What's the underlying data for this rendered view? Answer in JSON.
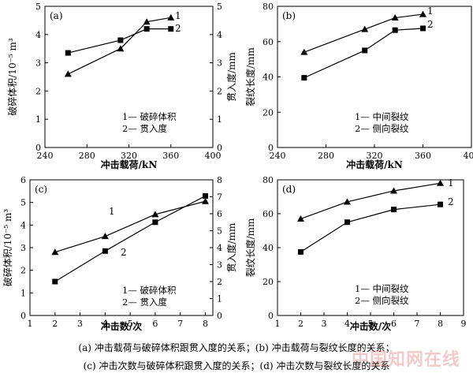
{
  "chart_data": [
    {
      "type": "line",
      "panel": "(a)",
      "xlabel": "冲击载荷/kN",
      "ylabel_left": "破碎体积/10⁻⁵ m³",
      "ylabel_right": "贯入度/mm",
      "xlim": [
        240,
        400
      ],
      "xticks": [
        240,
        280,
        320,
        360,
        400
      ],
      "ylim_left": [
        0,
        5
      ],
      "yticks_left": [
        0,
        1,
        2,
        3,
        4,
        5
      ],
      "ylim_right": [
        0,
        5
      ],
      "yticks_right": [
        0,
        1,
        2,
        3,
        4,
        5
      ],
      "series": [
        {
          "name": "破碎体积",
          "legend_label": "1— 破碎体积",
          "axis": "left",
          "marker": "triangle",
          "curve_label": "1",
          "x": [
            262,
            312,
            337,
            360
          ],
          "y": [
            2.6,
            3.5,
            4.45,
            4.6
          ]
        },
        {
          "name": "贯入度",
          "legend_label": "2— 贯入度",
          "axis": "right",
          "marker": "square",
          "curve_label": "2",
          "x": [
            262,
            312,
            337,
            360
          ],
          "y": [
            3.35,
            3.8,
            4.2,
            4.2
          ]
        }
      ]
    },
    {
      "type": "line",
      "panel": "(b)",
      "xlabel": "冲击载荷/kN",
      "ylabel_left": "裂纹长度/mm",
      "xlim": [
        240,
        400
      ],
      "xticks": [
        240,
        280,
        320,
        360,
        400
      ],
      "ylim_left": [
        0,
        80
      ],
      "yticks_left": [
        0,
        20,
        40,
        60,
        80
      ],
      "series": [
        {
          "name": "中间裂纹",
          "legend_label": "1— 中间裂纹",
          "axis": "left",
          "marker": "triangle",
          "curve_label": "1",
          "x": [
            262,
            312,
            337,
            360
          ],
          "y": [
            54,
            67,
            73.5,
            75.5
          ]
        },
        {
          "name": "侧向裂纹",
          "legend_label": "2— 侧向裂纹",
          "axis": "left",
          "marker": "square",
          "curve_label": "2",
          "x": [
            262,
            312,
            337,
            360
          ],
          "y": [
            39.5,
            55,
            66.5,
            67.5
          ]
        }
      ]
    },
    {
      "type": "line",
      "panel": "(c)",
      "xlabel": "冲击数/次",
      "ylabel_left": "破碎体积/10⁻⁵ m³",
      "ylabel_right": "贯入度/mm",
      "xlim": [
        1,
        8.3
      ],
      "xticks": [
        1,
        2,
        3,
        4,
        5,
        6,
        7,
        8
      ],
      "ylim_left": [
        0,
        6
      ],
      "yticks_left": [
        0,
        1,
        2,
        3,
        4,
        5,
        6
      ],
      "ylim_right": [
        0,
        8
      ],
      "yticks_right": [
        0,
        1,
        2,
        3,
        4,
        5,
        6,
        7,
        8
      ],
      "series": [
        {
          "name": "破碎体积",
          "legend_label": "1— 破碎体积",
          "axis": "left",
          "marker": "triangle",
          "curve_label": "1",
          "x": [
            2,
            4,
            6,
            8
          ],
          "y": [
            2.8,
            3.5,
            4.47,
            5.05
          ]
        },
        {
          "name": "贯入度",
          "legend_label": "2— 贯入度",
          "axis": "right",
          "marker": "square",
          "curve_label": "2",
          "x": [
            2,
            4,
            6,
            8
          ],
          "y": [
            2.0,
            3.8,
            5.5,
            7.05
          ]
        }
      ]
    },
    {
      "type": "line",
      "panel": "(d)",
      "xlabel": "冲击数/次",
      "ylabel_left": "裂纹长度/mm",
      "xlim": [
        1,
        9
      ],
      "xticks": [
        1,
        2,
        3,
        4,
        5,
        6,
        7,
        8,
        9
      ],
      "ylim_left": [
        0,
        80
      ],
      "yticks_left": [
        0,
        20,
        40,
        60,
        80
      ],
      "series": [
        {
          "name": "中间裂纹",
          "legend_label": "1— 中间裂纹",
          "axis": "left",
          "marker": "triangle",
          "curve_label": "1",
          "x": [
            2,
            4,
            6,
            8
          ],
          "y": [
            57,
            67,
            73.5,
            78
          ]
        },
        {
          "name": "侧向裂纹",
          "legend_label": "2— 侧向裂纹",
          "axis": "left",
          "marker": "square",
          "curve_label": "2",
          "x": [
            2,
            4,
            6,
            8
          ],
          "y": [
            37.5,
            55,
            62.5,
            65.5
          ]
        }
      ]
    }
  ],
  "captions": {
    "line1": "(a)  冲击载荷与破碎体积跟贯入度的关系；(b)  冲击载荷与裂纹长度的关系；",
    "line2": "(c)  冲击次数与破碎体积跟贯入度的关系；(d)  冲击次数与裂纹长度的关系"
  },
  "watermark": "中国知网在线"
}
